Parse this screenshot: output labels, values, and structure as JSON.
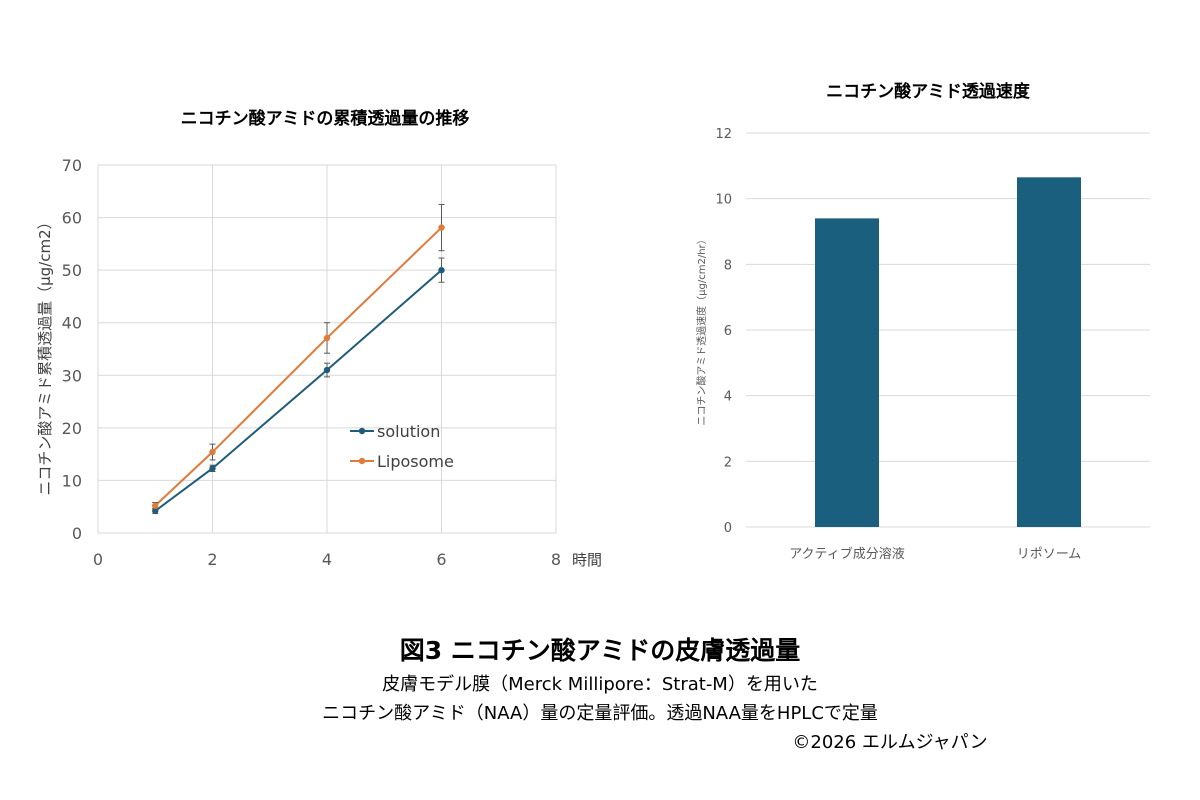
{
  "chart_data": [
    {
      "type": "line",
      "title": "ニコチン酸アミドの累積透過量の推移",
      "xlabel": "時間",
      "ylabel": "ニコチン酸アミド累積透過量（μg/cm2）",
      "xlim": [
        0,
        8
      ],
      "ylim": [
        0,
        70
      ],
      "xticks": [
        "0",
        "2",
        "4",
        "6",
        "8"
      ],
      "yticks": [
        "0",
        "10",
        "20",
        "30",
        "40",
        "50",
        "60",
        "70"
      ],
      "grid": true,
      "legend_position": "center-right",
      "series": [
        {
          "name": "solution",
          "color": "#1f5c7a",
          "x": [
            1,
            2,
            4,
            6
          ],
          "y": [
            4.2,
            12.3,
            31.0,
            50.0
          ],
          "error": [
            0.5,
            0.6,
            1.3,
            2.3
          ]
        },
        {
          "name": "Liposome",
          "color": "#e07b39",
          "x": [
            1,
            2,
            4,
            6
          ],
          "y": [
            5.2,
            15.4,
            37.1,
            58.1
          ],
          "error": [
            0.6,
            1.5,
            2.9,
            4.4
          ]
        }
      ]
    },
    {
      "type": "bar",
      "title": "ニコチン酸アミド透過速度",
      "ylabel": "ニコチン酸アミド透過速度（μg/cm2/hr）",
      "categories": [
        "アクティブ成分溶液",
        "リポソーム"
      ],
      "values": [
        9.4,
        10.65
      ],
      "ylim": [
        0,
        12
      ],
      "yticks": [
        "0",
        "2",
        "4",
        "6",
        "8",
        "10",
        "12"
      ],
      "grid": true,
      "color": "#1a5f7d"
    }
  ],
  "caption": {
    "title": "図3 ニコチン酸アミドの皮膚透過量",
    "line1": "皮膚モデル膜（Merck Millipore：Strat-M）を用いた",
    "line2": "ニコチン酸アミド（NAA）量の定量評価。透過NAA量をHPLCで定量",
    "copyright": "©2026 エルムジャパン"
  }
}
